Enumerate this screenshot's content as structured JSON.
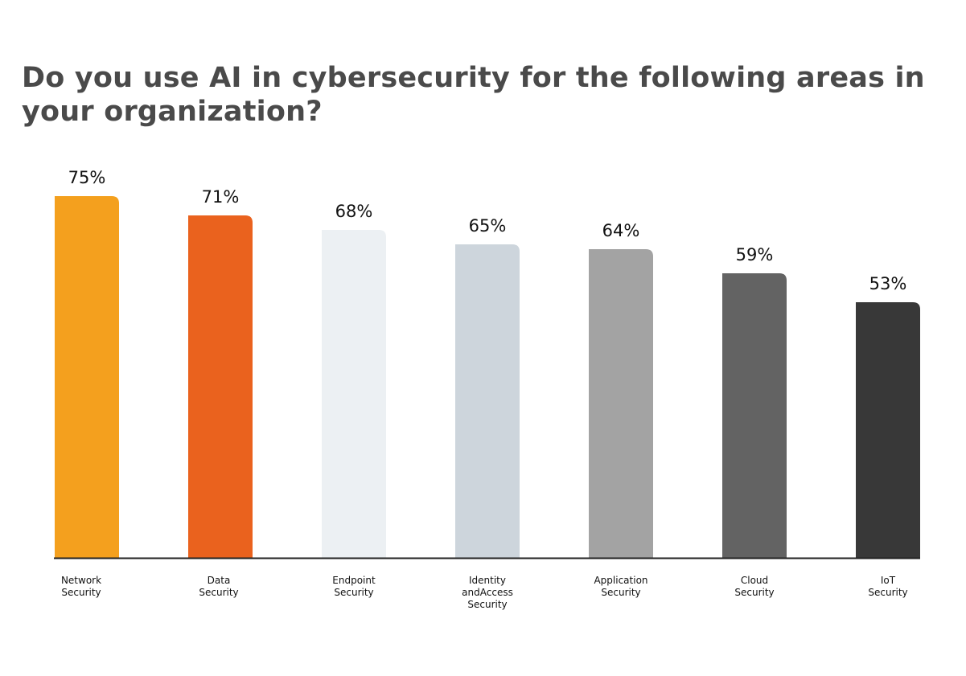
{
  "chart_data": {
    "type": "bar",
    "title": "Do you use AI in cybersecurity for the following areas in your organization?",
    "categories": [
      [
        "Network",
        "Security"
      ],
      [
        "Data",
        "Security"
      ],
      [
        "Endpoint",
        "Security"
      ],
      [
        "Identity",
        "andAccess",
        "Security"
      ],
      [
        "Application",
        "Security"
      ],
      [
        "Cloud",
        "Security"
      ],
      [
        "IoT",
        "Security"
      ]
    ],
    "values": [
      75,
      71,
      68,
      65,
      64,
      59,
      53
    ],
    "value_labels": [
      "75%",
      "71%",
      "68%",
      "65%",
      "64%",
      "59%",
      "53%"
    ],
    "colors": [
      "#F4A01E",
      "#EA621E",
      "#ECF0F3",
      "#CDD5DC",
      "#A3A3A3",
      "#636363",
      "#383838"
    ],
    "xlabel": "",
    "ylabel": "",
    "ylim": [
      0,
      100
    ],
    "grid": false,
    "legend": "none"
  }
}
